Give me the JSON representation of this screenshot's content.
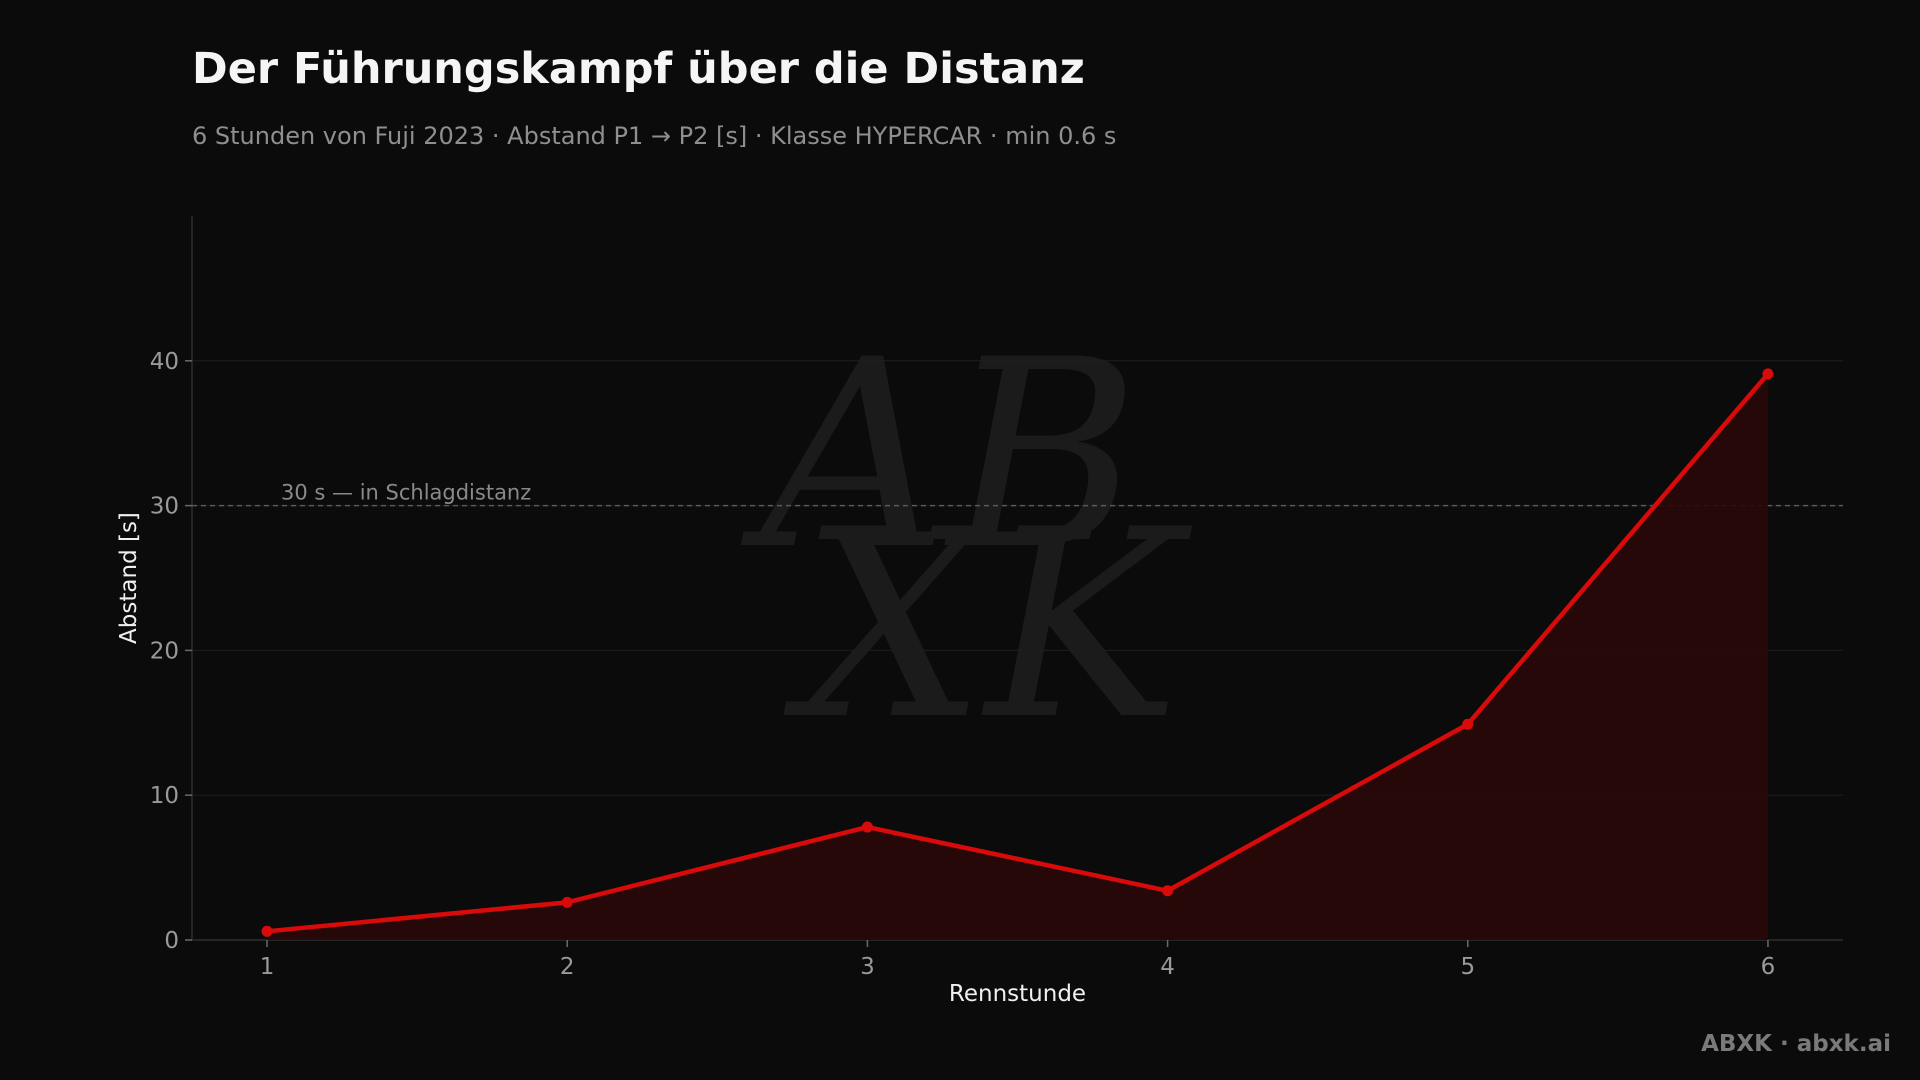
{
  "header": {
    "title": "Der Führungskampf über die Distanz",
    "subtitle": "6 Stunden von Fuji 2023 · Abstand P1 → P2 [s] · Klasse HYPERCAR · min 0.6 s"
  },
  "watermark": {
    "line1": "AB",
    "line2": "XK"
  },
  "footer": {
    "brand": "ABXK · abxk.ai"
  },
  "colors": {
    "background": "#0b0b0b",
    "line": "#d90a0a",
    "area": "#2a0808",
    "grid": "#1e1e1e",
    "reference": "#5a5a5a"
  },
  "chart_data": {
    "type": "area",
    "title": "Der Führungskampf über die Distanz",
    "subtitle": "6 Stunden von Fuji 2023 · Abstand P1 → P2 [s] · Klasse HYPERCAR · min 0.6 s",
    "xlabel": "Rennstunde",
    "ylabel": "Abstand [s]",
    "x": [
      1,
      2,
      3,
      4,
      5,
      6
    ],
    "series": [
      {
        "values": [
          0.6,
          2.6,
          7.8,
          3.4,
          14.9,
          39.1
        ]
      }
    ],
    "xlim": [
      0.75,
      6.25
    ],
    "ylim": [
      0,
      50
    ],
    "xticks": [
      1,
      2,
      3,
      4,
      5,
      6
    ],
    "yticks": [
      0,
      10,
      20,
      30,
      40
    ],
    "xtick_labels": [
      "1",
      "2",
      "3",
      "4",
      "5",
      "6"
    ],
    "ytick_labels": [
      "0",
      "10",
      "20",
      "30",
      "40"
    ],
    "reference_line": {
      "y": 30,
      "label": "30 s — in Schlagdistanz"
    },
    "grid": true,
    "legend": "none"
  }
}
